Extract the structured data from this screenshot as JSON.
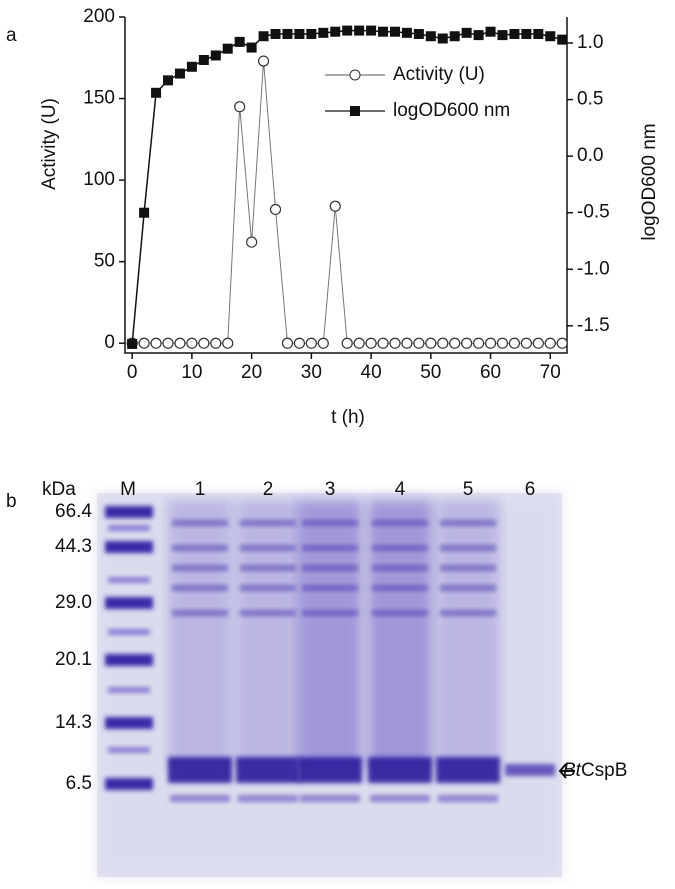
{
  "chart_data": {
    "type": "line",
    "panel": "a",
    "x_label": "t (h)",
    "y_label": "Activity (U)",
    "y2_label": "logOD600 nm",
    "x": [
      0,
      2,
      4,
      6,
      8,
      10,
      12,
      14,
      16,
      18,
      20,
      22,
      24,
      26,
      28,
      30,
      32,
      34,
      36,
      38,
      40,
      42,
      44,
      46,
      48,
      50,
      52,
      54,
      56,
      58,
      60,
      62,
      64,
      66,
      68,
      70,
      72
    ],
    "xlim": [
      -1.2,
      72.8
    ],
    "xticks": [
      0,
      10,
      20,
      30,
      40,
      50,
      60,
      70
    ],
    "ylim": [
      -6,
      200
    ],
    "yticks": [
      0,
      50,
      100,
      150,
      200
    ],
    "y2lim": [
      -1.74,
      1.23
    ],
    "y2ticks": [
      -1.5,
      {
        "value": -1.0,
        "label": "-1.0"
      },
      -0.5,
      {
        "value": 0.0,
        "label": "0.0"
      },
      0.5,
      {
        "value": 1.0,
        "label": "1.0"
      }
    ],
    "series": [
      {
        "name": "Activity (U)",
        "color": "#777777",
        "marker": "open-circle",
        "values": [
          0,
          0,
          0,
          0,
          0,
          0,
          0,
          0,
          0,
          145,
          62,
          173,
          82,
          0,
          0,
          0,
          0,
          84,
          0,
          0,
          0,
          0,
          0,
          0,
          0,
          0,
          0,
          0,
          0,
          0,
          0,
          0,
          0,
          0,
          0,
          0,
          0
        ]
      },
      {
        "name": "logOD600 nm",
        "color": "#111111",
        "marker": "filled-square",
        "axis": "y2",
        "values": [
          -1.66,
          -0.5,
          0.56,
          0.67,
          0.73,
          0.79,
          0.85,
          0.89,
          0.95,
          1.01,
          0.96,
          1.06,
          1.08,
          1.08,
          1.08,
          1.08,
          1.09,
          1.1,
          1.11,
          1.11,
          1.11,
          1.1,
          1.1,
          1.09,
          1.08,
          1.06,
          1.04,
          1.06,
          1.09,
          1.07,
          1.1,
          1.07,
          1.08,
          1.08,
          1.08,
          1.06,
          1.03
        ]
      }
    ]
  },
  "gel": {
    "panel": "b",
    "unit": "kDa",
    "lanes": [
      "M",
      "1",
      "2",
      "3",
      "4",
      "5",
      "6"
    ],
    "markers": [
      "66.4",
      "44.3",
      "29.0",
      "20.1",
      "14.3",
      "6.5"
    ],
    "target_italic": "Bt",
    "target": "CspB"
  }
}
